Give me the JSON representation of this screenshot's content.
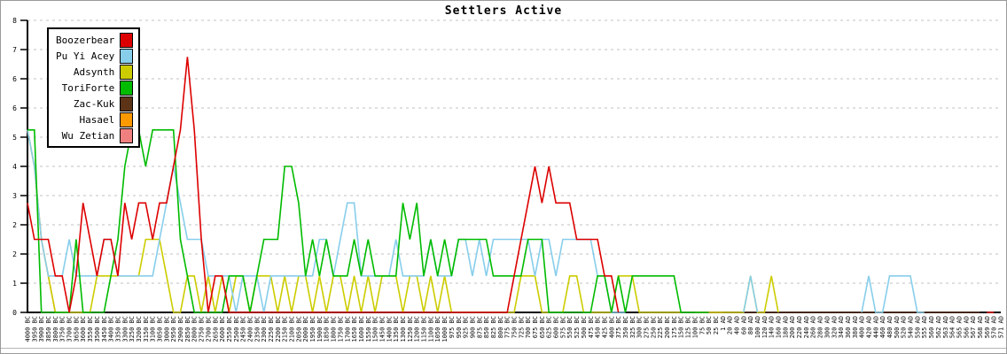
{
  "window": {
    "kind": "game-statistics-graph"
  },
  "chart_data": {
    "type": "line",
    "title": "Settlers Active",
    "ylim": [
      0,
      8
    ],
    "grid": "horizontal-dashed",
    "grid_color": "#c0c0c0",
    "axis_color": "#000000",
    "legend_position": "top-left",
    "y_ticks": {
      "values": [
        0,
        0.8,
        1.6,
        2.4,
        3.2,
        4,
        4.8,
        5.6,
        6.4,
        7.2,
        8
      ],
      "labels": [
        "0",
        "1",
        "2",
        "2",
        "3",
        "4",
        "5",
        "6",
        "6",
        "7",
        "8"
      ]
    },
    "x_labels": [
      "4000 BC",
      "3950 BC",
      "3900 BC",
      "3850 BC",
      "3800 BC",
      "3750 BC",
      "3700 BC",
      "3650 BC",
      "3600 BC",
      "3550 BC",
      "3500 BC",
      "3450 BC",
      "3400 BC",
      "3350 BC",
      "3300 BC",
      "3250 BC",
      "3200 BC",
      "3150 BC",
      "3100 BC",
      "3050 BC",
      "3000 BC",
      "2950 BC",
      "2900 BC",
      "2850 BC",
      "2800 BC",
      "2750 BC",
      "2700 BC",
      "2650 BC",
      "2600 BC",
      "2550 BC",
      "2500 BC",
      "2450 BC",
      "2400 BC",
      "2350 BC",
      "2300 BC",
      "2250 BC",
      "2200 BC",
      "2150 BC",
      "2100 BC",
      "2050 BC",
      "2000 BC",
      "1950 BC",
      "1900 BC",
      "1850 BC",
      "1800 BC",
      "1750 BC",
      "1700 BC",
      "1650 BC",
      "1600 BC",
      "1550 BC",
      "1500 BC",
      "1450 BC",
      "1400 BC",
      "1350 BC",
      "1300 BC",
      "1250 BC",
      "1200 BC",
      "1150 BC",
      "1100 BC",
      "1050 BC",
      "1000 BC",
      "975 BC",
      "950 BC",
      "925 BC",
      "900 BC",
      "875 BC",
      "850 BC",
      "825 BC",
      "800 BC",
      "775 BC",
      "750 BC",
      "725 BC",
      "700 BC",
      "675 BC",
      "650 BC",
      "625 BC",
      "600 BC",
      "575 BC",
      "550 BC",
      "525 BC",
      "500 BC",
      "475 BC",
      "450 BC",
      "425 BC",
      "400 BC",
      "375 BC",
      "350 BC",
      "325 BC",
      "300 BC",
      "275 BC",
      "250 BC",
      "225 BC",
      "200 BC",
      "175 BC",
      "150 BC",
      "125 BC",
      "100 BC",
      "75 BC",
      "50 BC",
      "25 BC",
      "1 AD",
      "20 AD",
      "40 AD",
      "60 AD",
      "80 AD",
      "100 AD",
      "120 AD",
      "140 AD",
      "160 AD",
      "180 AD",
      "200 AD",
      "220 AD",
      "240 AD",
      "260 AD",
      "280 AD",
      "300 AD",
      "320 AD",
      "340 AD",
      "360 AD",
      "380 AD",
      "400 AD",
      "420 AD",
      "440 AD",
      "460 AD",
      "480 AD",
      "500 AD",
      "520 AD",
      "540 AD",
      "550 AD",
      "555 AD",
      "560 AD",
      "562 AD",
      "563 AD",
      "564 AD",
      "565 AD",
      "566 AD",
      "567 AD",
      "568 AD",
      "569 AD",
      "570 AD",
      "571 AD"
    ],
    "series": [
      {
        "name": "Boozerbear",
        "color": "#dd0000",
        "values_rle": [
          [
            3,
            1
          ],
          [
            2,
            3
          ],
          [
            1,
            2
          ],
          [
            0,
            1
          ],
          [
            1,
            1
          ],
          [
            3,
            1
          ],
          [
            2,
            1
          ],
          [
            1,
            1
          ],
          [
            2,
            2
          ],
          [
            1,
            1
          ],
          [
            3,
            1
          ],
          [
            2,
            1
          ],
          [
            3,
            2
          ],
          [
            2,
            1
          ],
          [
            3,
            2
          ],
          [
            4,
            1
          ],
          [
            5,
            1
          ],
          [
            7,
            1
          ],
          [
            5,
            1
          ],
          [
            2,
            1
          ],
          [
            0,
            1
          ],
          [
            1,
            2
          ],
          [
            0,
            41
          ],
          [
            1,
            1
          ],
          [
            2,
            1
          ],
          [
            3,
            1
          ],
          [
            4,
            1
          ],
          [
            3,
            1
          ],
          [
            4,
            1
          ],
          [
            3,
            3
          ],
          [
            2,
            4
          ],
          [
            1,
            2
          ],
          [
            0,
            1
          ],
          [
            null,
            52
          ],
          [
            0,
            2
          ],
          [
            null,
            1
          ]
        ]
      },
      {
        "name": "Pu Yi Acey",
        "color": "#87ceeb",
        "values_rle": [
          [
            5,
            1
          ],
          [
            4,
            1
          ],
          [
            2,
            1
          ],
          [
            1,
            3
          ],
          [
            2,
            1
          ],
          [
            1,
            4
          ],
          [
            2,
            2
          ],
          [
            1,
            6
          ],
          [
            2,
            1
          ],
          [
            3,
            1
          ],
          [
            4,
            1
          ],
          [
            3,
            1
          ],
          [
            2,
            3
          ],
          [
            1,
            4
          ],
          [
            0,
            1
          ],
          [
            1,
            3
          ],
          [
            0,
            1
          ],
          [
            1,
            7
          ],
          [
            2,
            2
          ],
          [
            1,
            1
          ],
          [
            2,
            1
          ],
          [
            3,
            2
          ],
          [
            1,
            5
          ],
          [
            2,
            1
          ],
          [
            1,
            4
          ],
          [
            2,
            1
          ],
          [
            1,
            3
          ],
          [
            2,
            2
          ],
          [
            1,
            1
          ],
          [
            2,
            1
          ],
          [
            1,
            1
          ],
          [
            2,
            6
          ],
          [
            1,
            1
          ],
          [
            2,
            2
          ],
          [
            1,
            1
          ],
          [
            2,
            5
          ],
          [
            1,
            2
          ],
          [
            0,
            3
          ],
          [
            null,
            16
          ],
          [
            0,
            1
          ],
          [
            1,
            1
          ],
          [
            0,
            1
          ],
          [
            null,
            14
          ],
          [
            0,
            1
          ],
          [
            1,
            1
          ],
          [
            0,
            2
          ],
          [
            1,
            4
          ],
          [
            0,
            2
          ],
          [
            null,
            11
          ]
        ]
      },
      {
        "name": "Adsynth",
        "color": "#cccc00",
        "values_rle": [
          [
            5,
            1
          ],
          [
            4,
            1
          ],
          [
            2,
            1
          ],
          [
            1,
            1
          ],
          [
            0,
            6
          ],
          [
            1,
            7
          ],
          [
            2,
            3
          ],
          [
            1,
            1
          ],
          [
            0,
            2
          ],
          [
            1,
            2
          ],
          [
            0,
            1
          ],
          [
            1,
            1
          ],
          [
            0,
            1
          ],
          [
            1,
            1
          ],
          [
            0,
            1
          ],
          [
            1,
            2
          ],
          [
            0,
            1
          ],
          [
            1,
            3
          ],
          [
            0,
            1
          ],
          [
            1,
            1
          ],
          [
            0,
            1
          ],
          [
            1,
            2
          ],
          [
            0,
            1
          ],
          [
            1,
            1
          ],
          [
            0,
            1
          ],
          [
            1,
            2
          ],
          [
            0,
            1
          ],
          [
            1,
            1
          ],
          [
            0,
            1
          ],
          [
            1,
            1
          ],
          [
            0,
            1
          ],
          [
            1,
            3
          ],
          [
            0,
            1
          ],
          [
            1,
            2
          ],
          [
            0,
            1
          ],
          [
            1,
            1
          ],
          [
            0,
            1
          ],
          [
            1,
            1
          ],
          [
            0,
            10
          ],
          [
            1,
            3
          ],
          [
            0,
            4
          ],
          [
            1,
            2
          ],
          [
            0,
            5
          ],
          [
            1,
            3
          ],
          [
            0,
            16
          ],
          [
            1,
            1
          ],
          [
            0,
            2
          ],
          [
            1,
            1
          ],
          [
            0,
            1
          ],
          [
            null,
            32
          ]
        ]
      },
      {
        "name": "ToriForte",
        "color": "#00bb00",
        "values_rle": [
          [
            5,
            2
          ],
          [
            0,
            5
          ],
          [
            2,
            1
          ],
          [
            0,
            4
          ],
          [
            1,
            1
          ],
          [
            2,
            1
          ],
          [
            4,
            1
          ],
          [
            5,
            2
          ],
          [
            4,
            1
          ],
          [
            5,
            4
          ],
          [
            2,
            1
          ],
          [
            1,
            1
          ],
          [
            0,
            5
          ],
          [
            1,
            3
          ],
          [
            0,
            1
          ],
          [
            1,
            1
          ],
          [
            2,
            3
          ],
          [
            4,
            2
          ],
          [
            3,
            1
          ],
          [
            1,
            1
          ],
          [
            2,
            1
          ],
          [
            1,
            1
          ],
          [
            2,
            1
          ],
          [
            1,
            3
          ],
          [
            2,
            1
          ],
          [
            1,
            1
          ],
          [
            2,
            1
          ],
          [
            1,
            4
          ],
          [
            3,
            1
          ],
          [
            2,
            1
          ],
          [
            3,
            1
          ],
          [
            1,
            1
          ],
          [
            2,
            1
          ],
          [
            1,
            1
          ],
          [
            2,
            1
          ],
          [
            1,
            1
          ],
          [
            2,
            5
          ],
          [
            1,
            5
          ],
          [
            2,
            3
          ],
          [
            0,
            7
          ],
          [
            1,
            2
          ],
          [
            0,
            1
          ],
          [
            1,
            1
          ],
          [
            0,
            1
          ],
          [
            1,
            7
          ],
          [
            0,
            5
          ],
          [
            null,
            42
          ]
        ]
      },
      {
        "name": "Zac-Kuk",
        "color": "#5c3317",
        "values_rle": [
          [
            null,
            96
          ],
          [
            0,
            42
          ],
          [
            null,
            3
          ]
        ]
      },
      {
        "name": "Hasael",
        "color": "#ff9900",
        "values_rle": [
          [
            null,
            96
          ],
          [
            0,
            5
          ],
          [
            null,
            40
          ]
        ]
      },
      {
        "name": "Wu Zetian",
        "color": "#f08080",
        "values_rle": [
          [
            5,
            1
          ],
          [
            4,
            1
          ],
          [
            2,
            1
          ],
          [
            1,
            1
          ],
          [
            0,
            3
          ],
          [
            null,
            134
          ]
        ]
      }
    ],
    "draw_order": [
      "Wu Zetian",
      "Hasael",
      "Zac-Kuk",
      "Adsynth",
      "Pu Yi Acey",
      "ToriForte",
      "Boozerbear"
    ]
  }
}
